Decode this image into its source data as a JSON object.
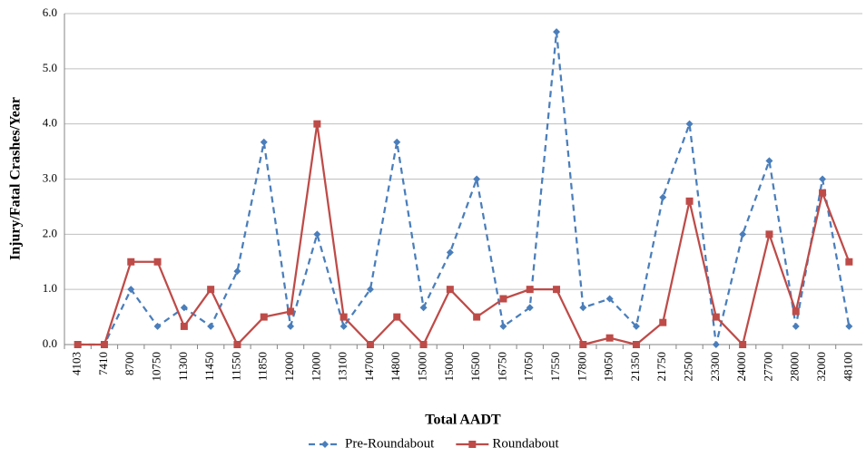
{
  "chart_data": {
    "type": "line",
    "x_label": "Total AADT",
    "y_label": "Injury/Fatal Crashes/Year",
    "categories": [
      "4103",
      "7410",
      "8700",
      "10750",
      "11300",
      "11450",
      "11550",
      "11850",
      "12000",
      "12000",
      "13100",
      "14700",
      "14800",
      "15000",
      "15000",
      "16500",
      "16750",
      "17050",
      "17550",
      "17800",
      "19050",
      "21350",
      "21750",
      "22500",
      "23300",
      "24000",
      "27700",
      "28000",
      "32000",
      "48100"
    ],
    "series": [
      {
        "name": "Pre-Roundabout",
        "color": "#4a7ebb",
        "dash": true,
        "marker": "diamond",
        "values": [
          0,
          0,
          1.0,
          0.33,
          0.67,
          0.33,
          1.33,
          3.67,
          0.33,
          2.0,
          0.33,
          1.0,
          3.67,
          0.67,
          1.67,
          3.0,
          0.33,
          0.67,
          5.67,
          0.67,
          0.83,
          0.33,
          2.67,
          4.0,
          0,
          2.0,
          3.33,
          0.33,
          3.0,
          0.33
        ]
      },
      {
        "name": "Roundabout",
        "color": "#be4b48",
        "dash": false,
        "marker": "square",
        "values": [
          0,
          0,
          1.5,
          1.5,
          0.33,
          1.0,
          0,
          0.5,
          0.6,
          4.0,
          0.5,
          0,
          0.5,
          0,
          1.0,
          0.5,
          0.83,
          1.0,
          1.0,
          0,
          0.12,
          0,
          0.4,
          2.6,
          0.5,
          0,
          2.0,
          0.6,
          2.75,
          1.5
        ]
      }
    ],
    "ylim": [
      0,
      6
    ],
    "yticks": [
      {
        "value": 0,
        "label": "0.0"
      },
      {
        "value": 1,
        "label": "1.0"
      },
      {
        "value": 2,
        "label": "2.0"
      },
      {
        "value": 3,
        "label": "3.0"
      },
      {
        "value": 4,
        "label": "4.0"
      },
      {
        "value": 5,
        "label": "5.0"
      },
      {
        "value": 6,
        "label": "6.0"
      }
    ],
    "grid": true,
    "legend": "bottom"
  }
}
